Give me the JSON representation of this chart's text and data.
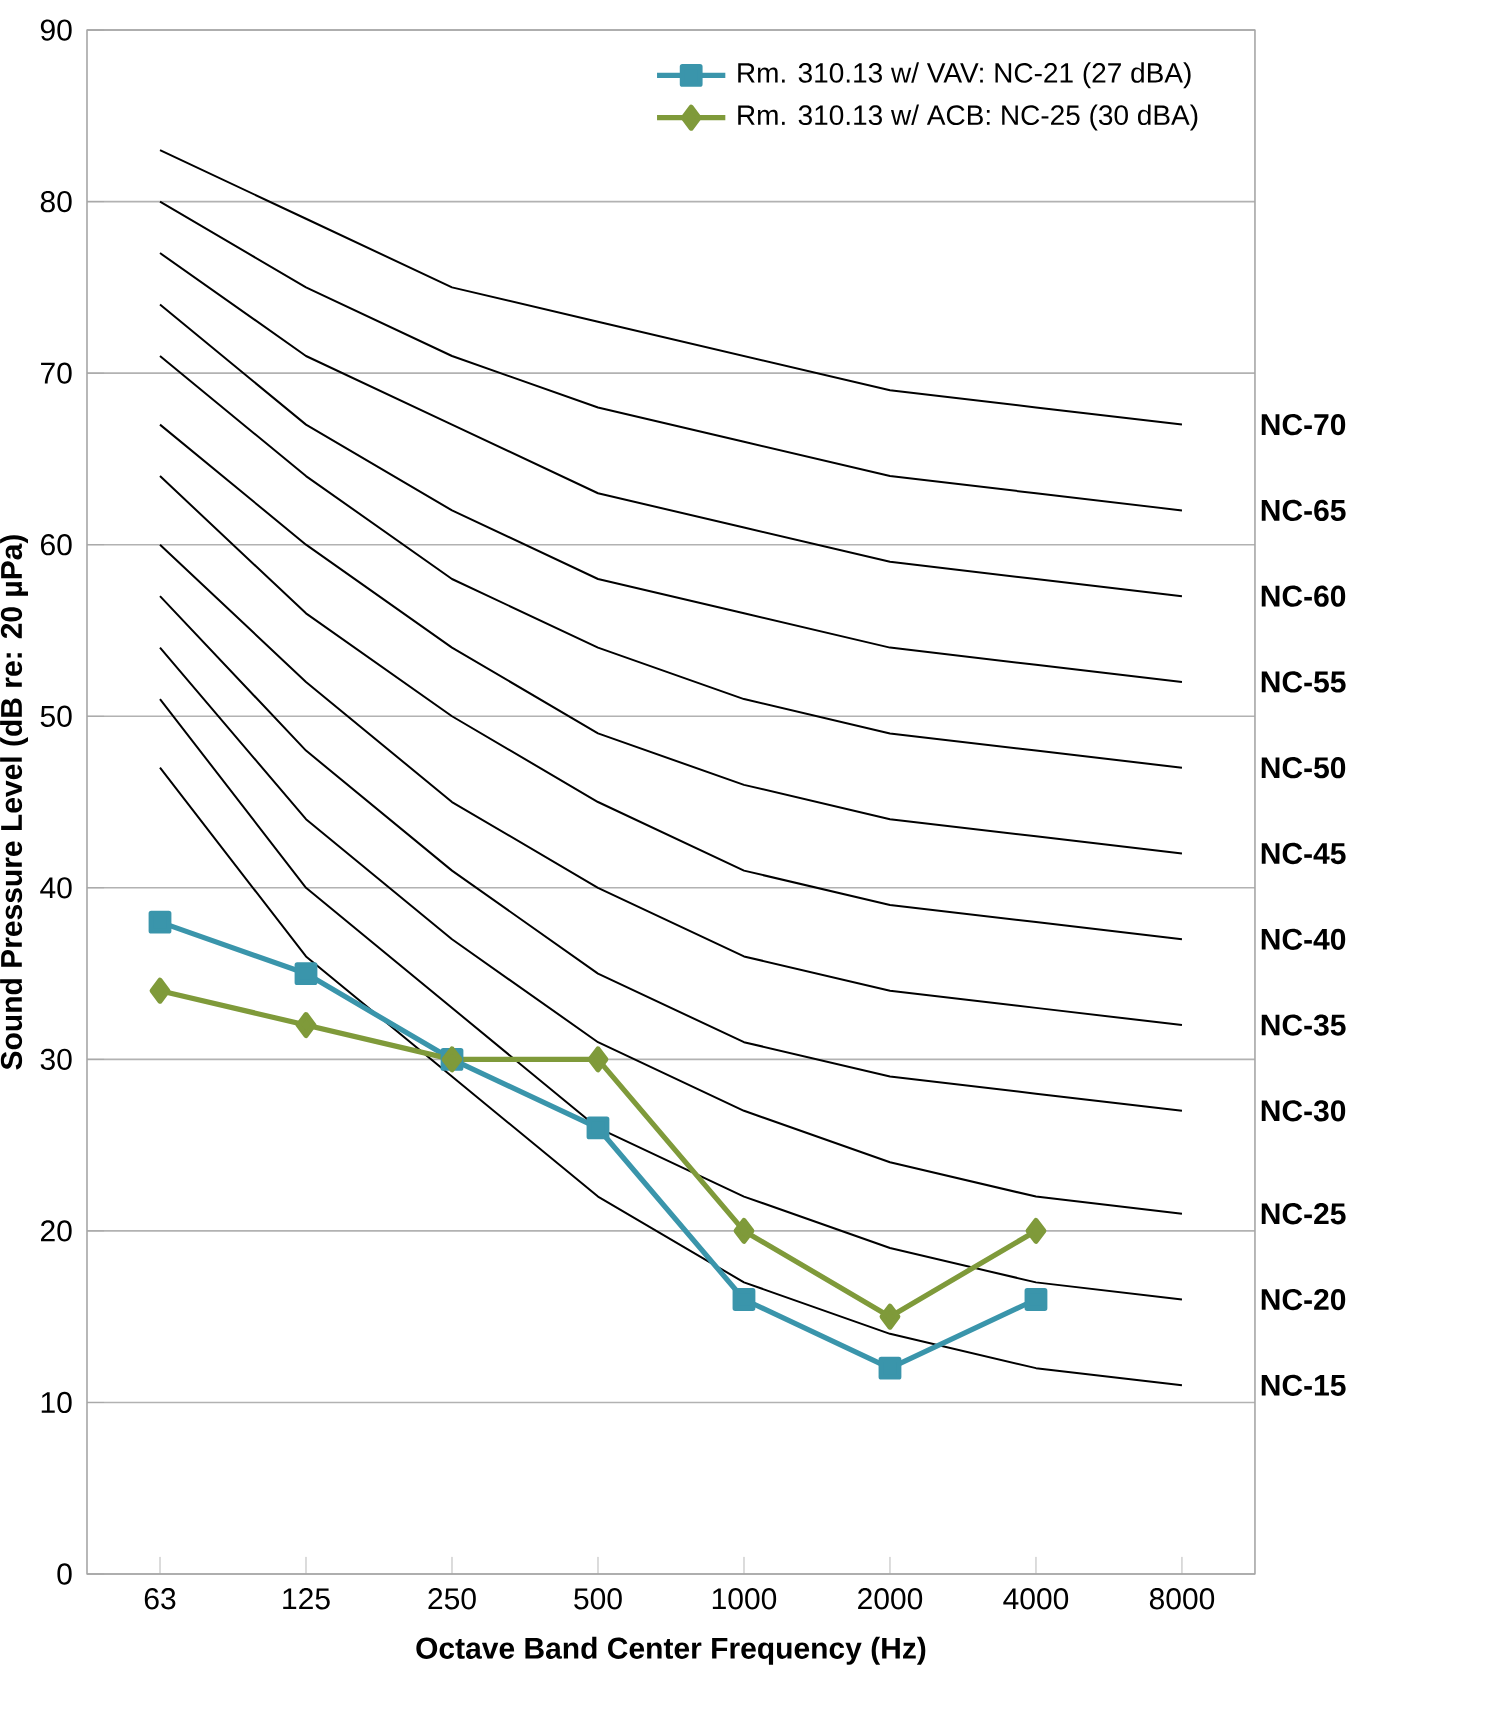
{
  "chart_data": {
    "type": "line",
    "xlabel": "Octave Band Center Frequency (Hz)",
    "ylabel": "Sound Pressure Level (dB re: 20 µPa)",
    "categories": [
      "63",
      "125",
      "250",
      "500",
      "1000",
      "2000",
      "4000",
      "8000"
    ],
    "ylim": [
      0,
      90
    ],
    "yticks": [
      0,
      10,
      20,
      30,
      40,
      50,
      60,
      70,
      80,
      90
    ],
    "grid": "y",
    "legend": "top right",
    "series": [
      {
        "name": "NC-70",
        "color": "#000000",
        "marker": "none",
        "values": [
          83,
          79,
          75,
          73,
          71,
          69,
          68,
          67
        ]
      },
      {
        "name": "NC-65",
        "color": "#000000",
        "marker": "none",
        "values": [
          80,
          75,
          71,
          68,
          66,
          64,
          63,
          62
        ]
      },
      {
        "name": "NC-60",
        "color": "#000000",
        "marker": "none",
        "values": [
          77,
          71,
          67,
          63,
          61,
          59,
          58,
          57
        ]
      },
      {
        "name": "NC-55",
        "color": "#000000",
        "marker": "none",
        "values": [
          74,
          67,
          62,
          58,
          56,
          54,
          53,
          52
        ]
      },
      {
        "name": "NC-50",
        "color": "#000000",
        "marker": "none",
        "values": [
          71,
          64,
          58,
          54,
          51,
          49,
          48,
          47
        ]
      },
      {
        "name": "NC-45",
        "color": "#000000",
        "marker": "none",
        "values": [
          67,
          60,
          54,
          49,
          46,
          44,
          43,
          42
        ]
      },
      {
        "name": "NC-40",
        "color": "#000000",
        "marker": "none",
        "values": [
          64,
          56,
          50,
          45,
          41,
          39,
          38,
          37
        ]
      },
      {
        "name": "NC-35",
        "color": "#000000",
        "marker": "none",
        "values": [
          60,
          52,
          45,
          40,
          36,
          34,
          33,
          32
        ]
      },
      {
        "name": "NC-30",
        "color": "#000000",
        "marker": "none",
        "values": [
          57,
          48,
          41,
          35,
          31,
          29,
          28,
          27
        ]
      },
      {
        "name": "NC-25",
        "color": "#000000",
        "marker": "none",
        "values": [
          54,
          44,
          37,
          31,
          27,
          24,
          22,
          21
        ]
      },
      {
        "name": "NC-20",
        "color": "#000000",
        "marker": "none",
        "values": [
          51,
          40,
          33,
          26,
          22,
          19,
          17,
          16
        ]
      },
      {
        "name": "NC-15",
        "color": "#000000",
        "marker": "none",
        "values": [
          47,
          36,
          29,
          22,
          17,
          14,
          12,
          11
        ]
      },
      {
        "name": "Rm. 310.13 w/ VAV: NC-21 (27 dBA)",
        "color": "#3a95ab",
        "marker": "square",
        "values": [
          38,
          35,
          30,
          26,
          16,
          12,
          16,
          null
        ]
      },
      {
        "name": "Rm. 310.13 w/ ACB: NC-25 (30 dBA)",
        "color": "#7f9a3a",
        "marker": "diamond",
        "values": [
          34,
          32,
          30,
          30,
          20,
          15,
          20,
          null
        ]
      }
    ]
  }
}
